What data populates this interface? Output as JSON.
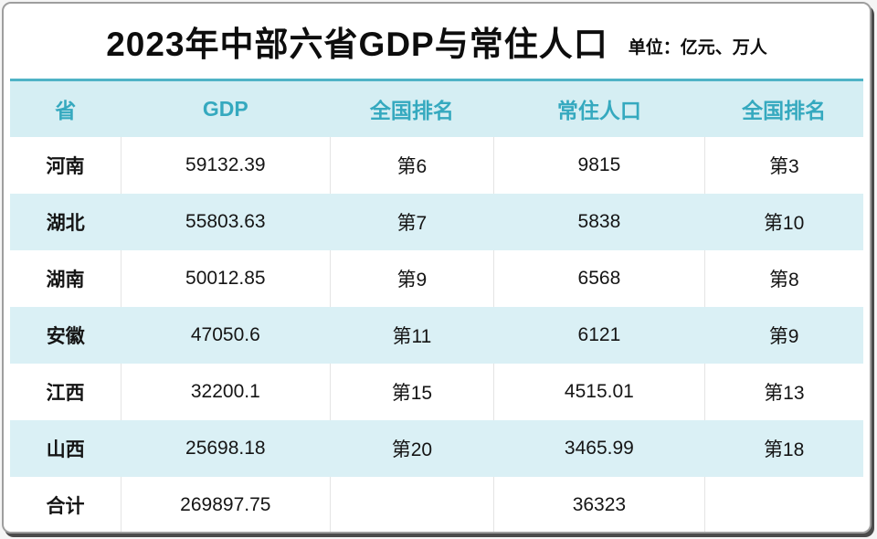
{
  "header": {
    "title": "2023年中部六省GDP与常住人口",
    "unit_label": "单位：亿元、万人"
  },
  "colors": {
    "header_bg": "#d5eef3",
    "header_text": "#35a9bf",
    "accent_line": "#4fb3c6",
    "alt_row_bg": "#daf0f5",
    "body_text": "#151515",
    "frame_border": "#9e9e9e",
    "frame_shadow": "#2d2d2d"
  },
  "chart_data": {
    "type": "table",
    "title": "2023年中部六省GDP与常住人口",
    "unit": "亿元、万人",
    "columns": [
      "省",
      "GDP",
      "全国排名",
      "常住人口",
      "全国排名"
    ],
    "rows": [
      [
        "河南",
        "59132.39",
        "第6",
        "9815",
        "第3"
      ],
      [
        "湖北",
        "55803.63",
        "第7",
        "5838",
        "第10"
      ],
      [
        "湖南",
        "50012.85",
        "第9",
        "6568",
        "第8"
      ],
      [
        "安徽",
        "47050.6",
        "第11",
        "6121",
        "第9"
      ],
      [
        "江西",
        "32200.1",
        "第15",
        "4515.01",
        "第13"
      ],
      [
        "山西",
        "25698.18",
        "第20",
        "3465.99",
        "第18"
      ],
      [
        "合计",
        "269897.75",
        "",
        "36323",
        ""
      ]
    ]
  }
}
